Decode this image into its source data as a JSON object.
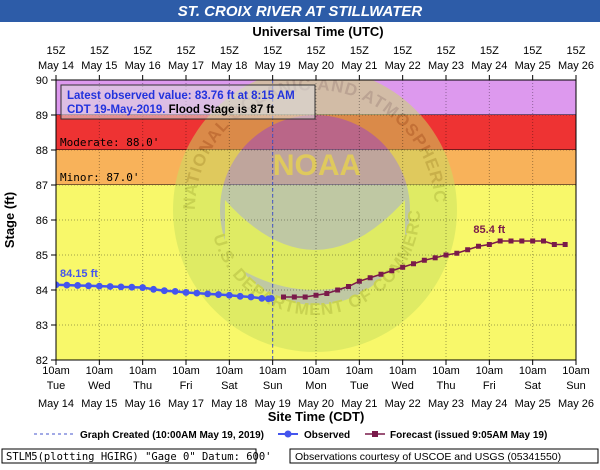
{
  "title": "ST. CROIX RIVER AT STILLWATER",
  "colors": {
    "title_bg": "#2d5ca8",
    "title_text": "#ffffff",
    "major_band": "#dd99ee",
    "moderate_band": "#ee3333",
    "minor_band": "#f8b25a",
    "action_band": "#f8f86a",
    "observed": "#4455ee",
    "forecast": "#7a1a4a",
    "latest_text": "#2233dd"
  },
  "chart_data": {
    "type": "line",
    "title": "ST. CROIX RIVER AT STILLWATER",
    "xlabel": "Site Time (CDT)",
    "xlabel_top": "Universal Time (UTC)",
    "ylabel": "Stage (ft)",
    "ylim": [
      82,
      90
    ],
    "yticks": [
      "82",
      "83",
      "84",
      "85",
      "86",
      "87",
      "88",
      "89",
      "90"
    ],
    "xlim_days": [
      0,
      12
    ],
    "top_ticks": [
      [
        "15Z",
        "May 14"
      ],
      [
        "15Z",
        "May 15"
      ],
      [
        "15Z",
        "May 16"
      ],
      [
        "15Z",
        "May 17"
      ],
      [
        "15Z",
        "May 18"
      ],
      [
        "15Z",
        "May 19"
      ],
      [
        "15Z",
        "May 20"
      ],
      [
        "15Z",
        "May 21"
      ],
      [
        "15Z",
        "May 22"
      ],
      [
        "15Z",
        "May 23"
      ],
      [
        "15Z",
        "May 24"
      ],
      [
        "15Z",
        "May 25"
      ],
      [
        "15Z",
        "May 26"
      ]
    ],
    "bottom_ticks": [
      [
        "10am",
        "Tue",
        "May 14"
      ],
      [
        "10am",
        "Wed",
        "May 15"
      ],
      [
        "10am",
        "Thu",
        "May 16"
      ],
      [
        "10am",
        "Fri",
        "May 17"
      ],
      [
        "10am",
        "Sat",
        "May 18"
      ],
      [
        "10am",
        "Sun",
        "May 19"
      ],
      [
        "10am",
        "Mon",
        "May 20"
      ],
      [
        "10am",
        "Tue",
        "May 21"
      ],
      [
        "10am",
        "Wed",
        "May 22"
      ],
      [
        "10am",
        "Thu",
        "May 23"
      ],
      [
        "10am",
        "Fri",
        "May 24"
      ],
      [
        "10am",
        "Sat",
        "May 25"
      ],
      [
        "10am",
        "Sun",
        "May 26"
      ]
    ],
    "flood_categories": [
      {
        "name": "major",
        "from": 89,
        "to": 90,
        "label": ""
      },
      {
        "name": "moderate",
        "from": 88,
        "to": 89,
        "label": "Moderate: 88.0'"
      },
      {
        "name": "minor",
        "from": 87,
        "to": 88,
        "label": "Minor: 87.0'"
      },
      {
        "name": "action",
        "from": 82,
        "to": 87,
        "label": ""
      }
    ],
    "graph_created_day": 5,
    "series": [
      {
        "name": "Observed",
        "x": [
          0,
          0.25,
          0.5,
          0.75,
          1,
          1.25,
          1.5,
          1.75,
          2,
          2.25,
          2.5,
          2.75,
          3,
          3.25,
          3.5,
          3.75,
          4,
          4.25,
          4.5,
          4.75,
          4.9,
          4.97
        ],
        "y": [
          84.15,
          84.14,
          84.13,
          84.12,
          84.11,
          84.1,
          84.09,
          84.08,
          84.07,
          84.02,
          83.98,
          83.96,
          83.93,
          83.91,
          83.89,
          83.87,
          83.85,
          83.82,
          83.8,
          83.76,
          83.75,
          83.76
        ]
      },
      {
        "name": "Forecast",
        "x": [
          5.25,
          5.5,
          5.75,
          6,
          6.25,
          6.5,
          6.75,
          7,
          7.25,
          7.5,
          7.75,
          8,
          8.25,
          8.5,
          8.75,
          9,
          9.25,
          9.5,
          9.75,
          10,
          10.25,
          10.5,
          10.75,
          11,
          11.25,
          11.5,
          11.75
        ],
        "y": [
          83.8,
          83.8,
          83.8,
          83.85,
          83.9,
          84,
          84.1,
          84.25,
          84.35,
          84.45,
          84.55,
          84.65,
          84.75,
          84.85,
          84.92,
          85,
          85.05,
          85.15,
          85.25,
          85.3,
          85.4,
          85.4,
          85.4,
          85.4,
          85.4,
          85.3,
          85.3
        ]
      }
    ],
    "annotations": [
      {
        "text": "84.15 ft",
        "x": 0,
        "y": 84.15,
        "series": "Observed"
      },
      {
        "text": "85.4 ft",
        "x": 10,
        "y": 85.4,
        "series": "Forecast"
      }
    ]
  },
  "latest_box": {
    "line1": "Latest observed value: 83.76 ft at 8:15 AM",
    "line2_blue": "CDT 19-May-2019.",
    "line2_black": " Flood Stage is 87 ft"
  },
  "legend": {
    "graph_created": "Graph Created (10:00AM May 19, 2019)",
    "observed": "Observed",
    "forecast": "Forecast (issued 9:05AM May 19)"
  },
  "footer": {
    "left": "STLM5(plotting HGIRG) \"Gage 0\" Datum: 600'",
    "right": "Observations courtesy of USCOE and USGS (05341550)"
  },
  "watermark": {
    "top_arc": "NATIONAL OCEANIC AND ATMOSPHERIC ADMINISTRATION",
    "bottom_arc": "U.S. DEPARTMENT OF COMMERCE",
    "center": "NOAA"
  }
}
